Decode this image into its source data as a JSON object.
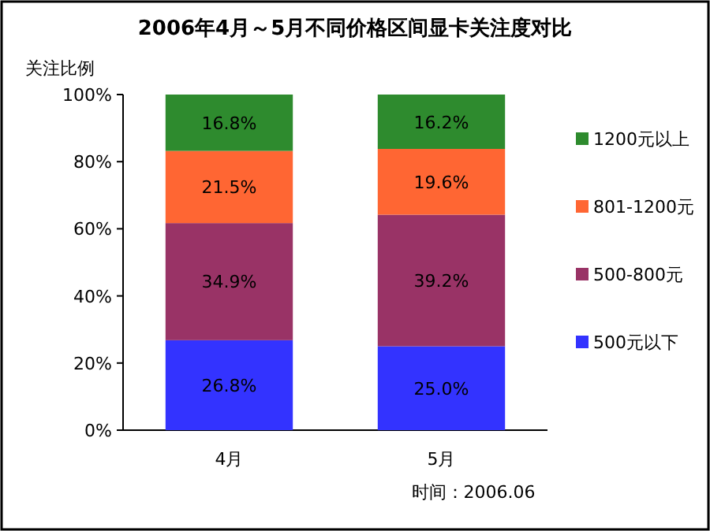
{
  "chart_data": {
    "type": "bar",
    "stacked": true,
    "title": "2006年4月～5月不同价格区间显卡关注度对比",
    "ylabel": "关注比例",
    "categories": [
      "4月",
      "5月"
    ],
    "series": [
      {
        "name": "500元以下",
        "color": "#3333ff",
        "values": [
          26.8,
          25.0
        ],
        "value_labels": [
          "26.8%",
          "25.0%"
        ]
      },
      {
        "name": "500-800元",
        "color": "#993366",
        "values": [
          34.9,
          39.2
        ],
        "value_labels": [
          "34.9%",
          "39.2%"
        ]
      },
      {
        "name": "801-1200元",
        "color": "#ff6633",
        "values": [
          21.5,
          19.6
        ],
        "value_labels": [
          "21.5%",
          "19.6%"
        ]
      },
      {
        "name": "1200元以上",
        "color": "#2e8b2e",
        "values": [
          16.8,
          16.2
        ],
        "value_labels": [
          "16.8%",
          "16.2%"
        ]
      }
    ],
    "ylim": [
      0,
      100
    ],
    "yticks": [
      {
        "value": 0,
        "label": "0%"
      },
      {
        "value": 20,
        "label": "20%"
      },
      {
        "value": 40,
        "label": "40%"
      },
      {
        "value": 60,
        "label": "60%"
      },
      {
        "value": 80,
        "label": "80%"
      },
      {
        "value": 100,
        "label": "100%"
      }
    ],
    "legend": "right",
    "annotations": [
      "时间：2006.06"
    ]
  }
}
